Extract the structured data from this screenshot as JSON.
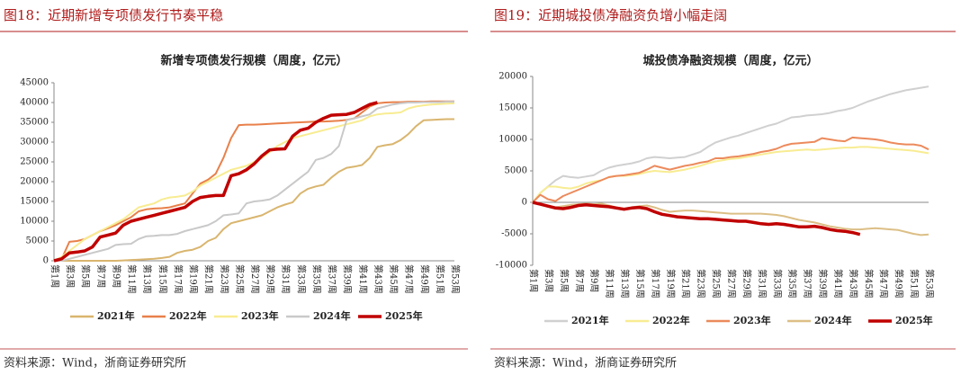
{
  "chart_data": [
    {
      "type": "line",
      "figure_label": "图18：近期新增专项债发行节奏平稳",
      "title": "新增专项债发行规模（周度，亿元）",
      "source": "资料来源：Wind，浙商证券研究所",
      "categories": [
        "第1周",
        null,
        "第3周",
        null,
        "第5周",
        null,
        "第7周",
        null,
        "第9周",
        null,
        "第11周",
        null,
        "第13周",
        null,
        "第15周",
        null,
        "第17周",
        null,
        "第19周",
        null,
        "第21周",
        null,
        "第23周",
        null,
        "第25周",
        null,
        "第27周",
        null,
        "第29周",
        null,
        "第31周",
        null,
        "第33周",
        null,
        "第35周",
        null,
        "第37周",
        null,
        "第39周",
        null,
        "第41周",
        null,
        "第43周",
        null,
        "第45周",
        null,
        "第47周",
        null,
        "第49周",
        null,
        "第51周",
        null,
        "第53周"
      ],
      "ylim": [
        0,
        45000
      ],
      "yticks": [
        0,
        5000,
        10000,
        15000,
        20000,
        25000,
        30000,
        35000,
        40000,
        45000
      ],
      "series": [
        {
          "name": "2021年",
          "color": "#d9b56e",
          "values": [
            0,
            0,
            0,
            0,
            0,
            0,
            0,
            0,
            0,
            100,
            200,
            300,
            400,
            500,
            700,
            1000,
            2000,
            2500,
            2800,
            3500,
            5000,
            5800,
            8000,
            9500,
            10000,
            10500,
            11000,
            11500,
            12500,
            13500,
            14200,
            14800,
            17000,
            18200,
            18800,
            19200,
            21000,
            22500,
            23500,
            23800,
            24200,
            26000,
            28800,
            29200,
            29500,
            30500,
            32000,
            34000,
            35500,
            35600,
            35700,
            35800,
            35800
          ]
        },
        {
          "name": "2022年",
          "color": "#e8804a",
          "values": [
            0,
            500,
            4800,
            5000,
            5500,
            6500,
            7500,
            8200,
            9000,
            10000,
            11000,
            12500,
            13000,
            13200,
            13300,
            13500,
            14000,
            14500,
            17000,
            19500,
            20500,
            22000,
            26000,
            31000,
            34300,
            34400,
            34400,
            34500,
            34600,
            34700,
            34800,
            34900,
            35000,
            35100,
            35200,
            35200,
            35300,
            35400,
            35600,
            36000,
            37500,
            39000,
            39800,
            40000,
            40100,
            40100,
            40200,
            40200,
            40200,
            40300,
            40300,
            40300,
            40300
          ]
        },
        {
          "name": "2023年",
          "color": "#f8ec92",
          "values": [
            0,
            1000,
            2500,
            4000,
            5500,
            6500,
            7500,
            8500,
            9500,
            10500,
            12000,
            13500,
            14000,
            14500,
            15500,
            16000,
            16200,
            16500,
            17500,
            19000,
            20000,
            21000,
            22000,
            23000,
            23500,
            24000,
            25000,
            26000,
            27500,
            29000,
            30000,
            31000,
            31500,
            32000,
            32500,
            33000,
            33500,
            34000,
            34500,
            35000,
            35500,
            36500,
            37000,
            37200,
            37300,
            37500,
            38500,
            39000,
            39300,
            39500,
            39600,
            39700,
            39800
          ]
        },
        {
          "name": "2024年",
          "color": "#c9c9c9",
          "values": [
            0,
            0,
            500,
            1000,
            1500,
            2000,
            2500,
            3000,
            4000,
            4200,
            4300,
            5500,
            6200,
            6300,
            6500,
            6500,
            6800,
            7500,
            8000,
            8500,
            9000,
            10000,
            11500,
            11700,
            12000,
            14500,
            15000,
            15200,
            15500,
            16500,
            18000,
            19500,
            21000,
            22500,
            25500,
            26000,
            27000,
            29000,
            35500,
            36000,
            36500,
            37000,
            38500,
            39000,
            39500,
            39800,
            40000,
            40000,
            40100,
            40100,
            40100,
            40200,
            40200
          ]
        },
        {
          "name": "2025年",
          "color": "#c00000",
          "values": [
            0,
            500,
            2000,
            2200,
            2500,
            3500,
            6000,
            6500,
            7000,
            9000,
            10000,
            10500,
            11000,
            11500,
            12000,
            12500,
            13000,
            13500,
            15000,
            16000,
            16300,
            16500,
            16500,
            21500,
            22000,
            23000,
            24500,
            26500,
            28000,
            28200,
            28300,
            31500,
            33000,
            33500,
            35000,
            36000,
            36800,
            36900,
            37000,
            37500,
            38500,
            39500,
            40000,
            null,
            null,
            null,
            null,
            null,
            null,
            null,
            null,
            null,
            null
          ]
        }
      ]
    },
    {
      "type": "line",
      "figure_label": "图19：近期城投债净融资负增小幅走阔",
      "title": "城投债净融资规模（周度，亿元）",
      "source": "资料来源：Wind，浙商证券研究所",
      "categories": [
        "第1周",
        null,
        "第3周",
        null,
        "第5周",
        null,
        "第7周",
        null,
        "第9周",
        null,
        "第11周",
        null,
        "第13周",
        null,
        "第15周",
        null,
        "第17周",
        null,
        "第19周",
        null,
        "第21周",
        null,
        "第23周",
        null,
        "第25周",
        null,
        "第27周",
        null,
        "第29周",
        null,
        "第31周",
        null,
        "第33周",
        null,
        "第35周",
        null,
        "第37周",
        null,
        "第39周",
        null,
        "第41周",
        null,
        "第43周",
        null,
        "第45周",
        null,
        "第47周",
        null,
        "第49周",
        null,
        "第51周",
        null,
        "第53周"
      ],
      "ylim": [
        -10000,
        20000
      ],
      "yticks": [
        -10000,
        -5000,
        0,
        5000,
        10000,
        15000,
        20000
      ],
      "series": [
        {
          "name": "2021年",
          "color": "#d0d0d0",
          "values": [
            0,
            1500,
            2500,
            3500,
            4200,
            4000,
            3900,
            4100,
            4300,
            5000,
            5500,
            5800,
            6000,
            6200,
            6500,
            7000,
            7200,
            7100,
            7000,
            7100,
            7200,
            7600,
            8000,
            8800,
            9500,
            9900,
            10300,
            10600,
            11000,
            11400,
            11800,
            12200,
            12500,
            13000,
            13500,
            13600,
            13800,
            13900,
            14000,
            14200,
            14500,
            14700,
            15000,
            15500,
            16000,
            16400,
            16800,
            17200,
            17500,
            17800,
            18000,
            18200,
            18400
          ]
        },
        {
          "name": "2022年",
          "color": "#f8ec92",
          "values": [
            0,
            1500,
            2500,
            2500,
            2300,
            2200,
            2500,
            3000,
            3300,
            3500,
            4000,
            4200,
            4200,
            4300,
            4500,
            4800,
            5000,
            4900,
            4800,
            5000,
            5200,
            5500,
            5800,
            6200,
            6500,
            6700,
            6900,
            7000,
            7200,
            7400,
            7600,
            7800,
            8000,
            8100,
            8200,
            8300,
            8400,
            8300,
            8400,
            8500,
            8600,
            8700,
            8700,
            8800,
            8800,
            8700,
            8600,
            8500,
            8400,
            8300,
            8200,
            8000,
            7800
          ]
        },
        {
          "name": "2023年",
          "color": "#ec8a5c",
          "values": [
            0,
            1200,
            500,
            200,
            1000,
            1500,
            2000,
            2500,
            3000,
            3500,
            4000,
            4200,
            4300,
            4500,
            4700,
            5200,
            5800,
            5500,
            5200,
            5500,
            5800,
            6000,
            6300,
            6500,
            7000,
            7000,
            7200,
            7300,
            7500,
            7700,
            8000,
            8200,
            8500,
            9000,
            9300,
            9400,
            9500,
            9600,
            10200,
            10000,
            9800,
            9700,
            10300,
            10200,
            10100,
            10000,
            9800,
            9500,
            9300,
            9200,
            9200,
            9000,
            8400
          ]
        },
        {
          "name": "2024年",
          "color": "#dcbf86",
          "values": [
            0,
            -300,
            -500,
            -800,
            -600,
            -400,
            -300,
            -200,
            -300,
            -200,
            -500,
            -800,
            -1000,
            -800,
            -600,
            -500,
            -800,
            -1200,
            -1500,
            -1400,
            -1300,
            -1300,
            -1400,
            -1500,
            -1600,
            -1700,
            -1800,
            -1800,
            -1800,
            -1800,
            -1800,
            -1900,
            -2000,
            -2200,
            -2500,
            -2800,
            -3000,
            -3200,
            -3500,
            -3800,
            -4000,
            -4200,
            -4300,
            -4300,
            -4200,
            -4100,
            -4200,
            -4300,
            -4400,
            -4700,
            -5000,
            -5200,
            -5100
          ]
        },
        {
          "name": "2025年",
          "color": "#c00000",
          "values": [
            0,
            -300,
            -600,
            -900,
            -1000,
            -800,
            -500,
            -400,
            -500,
            -600,
            -700,
            -900,
            -1100,
            -900,
            -800,
            -1000,
            -1500,
            -1900,
            -2100,
            -2300,
            -2400,
            -2500,
            -2600,
            -2600,
            -2700,
            -2800,
            -2900,
            -3000,
            -3000,
            -3200,
            -3400,
            -3500,
            -3400,
            -3500,
            -3700,
            -3900,
            -3900,
            -3800,
            -4000,
            -4300,
            -4500,
            -4600,
            -4800,
            -5100,
            null,
            null,
            null,
            null,
            null,
            null,
            null,
            null,
            null
          ]
        }
      ]
    }
  ]
}
